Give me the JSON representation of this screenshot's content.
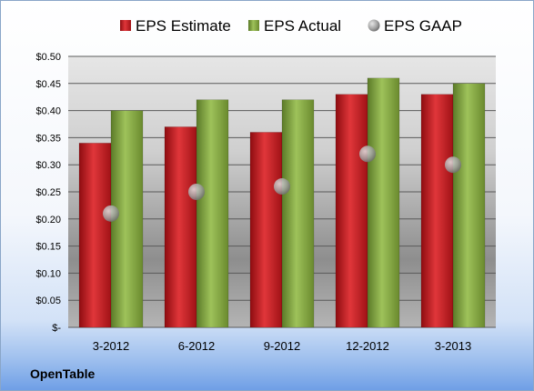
{
  "company": "OpenTable",
  "chart_data": {
    "type": "bar",
    "categories": [
      "3-2012",
      "6-2012",
      "9-2012",
      "12-2012",
      "3-2013"
    ],
    "series": [
      {
        "name": "EPS Estimate",
        "kind": "bar",
        "color": "#c0191f",
        "values": [
          0.34,
          0.37,
          0.36,
          0.43,
          0.43
        ]
      },
      {
        "name": "EPS Actual",
        "kind": "bar",
        "color": "#7fa33e",
        "values": [
          0.4,
          0.42,
          0.42,
          0.46,
          0.45
        ]
      },
      {
        "name": "EPS GAAP",
        "kind": "marker",
        "color": "#a0a0a0",
        "values": [
          0.21,
          0.25,
          0.26,
          0.32,
          0.3
        ]
      }
    ],
    "ylim": [
      0,
      0.5
    ],
    "yticks": [
      0,
      0.05,
      0.1,
      0.15,
      0.2,
      0.25,
      0.3,
      0.35,
      0.4,
      0.45,
      0.5
    ],
    "ytick_labels": [
      "$-",
      "$0.05",
      "$0.10",
      "$0.15",
      "$0.20",
      "$0.25",
      "$0.30",
      "$0.35",
      "$0.40",
      "$0.45",
      "$0.50"
    ],
    "grid": true,
    "legend_position": "top"
  }
}
